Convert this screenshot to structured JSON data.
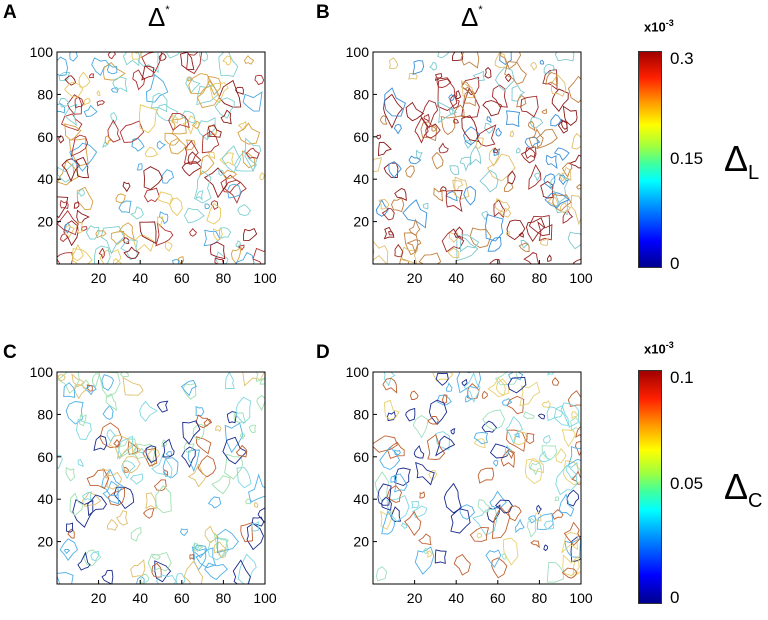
{
  "panels": [
    {
      "letter": "A",
      "title_main": "Δ",
      "title_sup": "*",
      "xticks": [
        "20",
        "40",
        "60",
        "80",
        "100"
      ],
      "yticks": [
        "20",
        "40",
        "60",
        "80",
        "100"
      ]
    },
    {
      "letter": "B",
      "title_main": "Δ",
      "title_sup": "*",
      "xticks": [
        "20",
        "40",
        "60",
        "80",
        "100"
      ],
      "yticks": [
        "20",
        "40",
        "60",
        "80",
        "100"
      ]
    },
    {
      "letter": "C",
      "title_main": "",
      "title_sup": "",
      "xticks": [
        "20",
        "40",
        "60",
        "80",
        "100"
      ],
      "yticks": [
        "20",
        "40",
        "60",
        "80",
        "100"
      ]
    },
    {
      "letter": "D",
      "title_main": "",
      "title_sup": "",
      "xticks": [
        "20",
        "40",
        "60",
        "80",
        "100"
      ],
      "yticks": [
        "20",
        "40",
        "60",
        "80",
        "100"
      ]
    }
  ],
  "colorbars": [
    {
      "exp_base": "x10",
      "exp_power": "-3",
      "ticks": [
        "0.3",
        "0.15",
        "0"
      ],
      "symbol": "Δ",
      "subscript": "L"
    },
    {
      "exp_base": "x10",
      "exp_power": "-3",
      "ticks": [
        "0.1",
        "0.05",
        "0"
      ],
      "symbol": "Δ",
      "subscript": "C"
    }
  ],
  "chart_data": [
    {
      "type": "heatmap",
      "panel": "A",
      "title": "Δ*",
      "xlim": [
        0,
        100
      ],
      "ylim": [
        0,
        100
      ],
      "colorbar": "Δ_L",
      "clim": [
        0,
        0.0003
      ],
      "style": "contour"
    },
    {
      "type": "heatmap",
      "panel": "B",
      "title": "Δ*",
      "xlim": [
        0,
        100
      ],
      "ylim": [
        0,
        100
      ],
      "colorbar": "Δ_L",
      "clim": [
        0,
        0.0003
      ],
      "style": "contour"
    },
    {
      "type": "heatmap",
      "panel": "C",
      "xlim": [
        0,
        100
      ],
      "ylim": [
        0,
        100
      ],
      "colorbar": "Δ_C",
      "clim": [
        0,
        0.0001
      ],
      "style": "contour"
    },
    {
      "type": "heatmap",
      "panel": "D",
      "xlim": [
        0,
        100
      ],
      "ylim": [
        0,
        100
      ],
      "colorbar": "Δ_C",
      "clim": [
        0,
        0.0001
      ],
      "style": "contour"
    }
  ]
}
